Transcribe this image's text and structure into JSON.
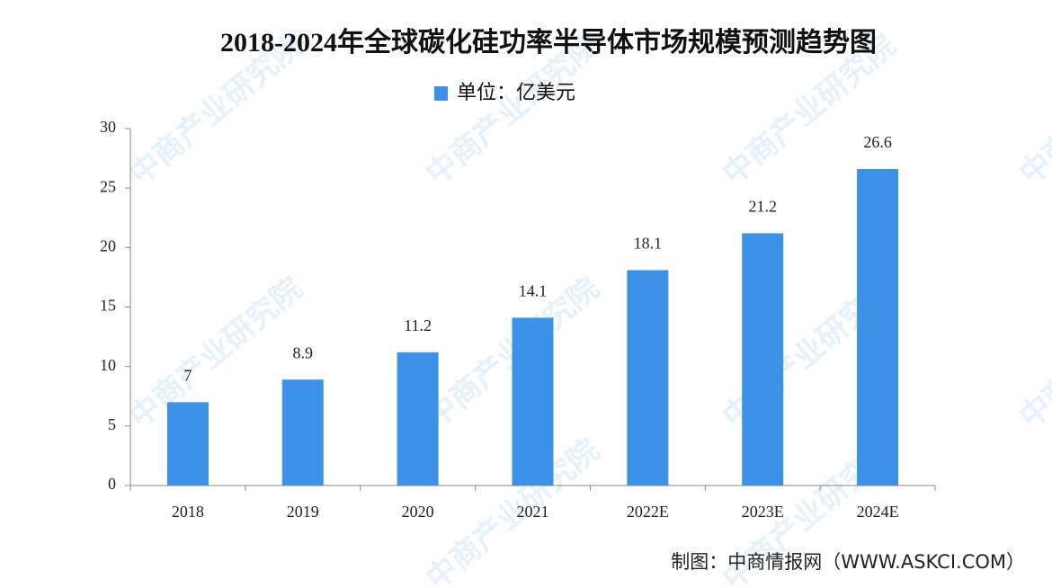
{
  "chart_data": {
    "type": "bar",
    "title": "2018-2024年全球碳化硅功率半导体市场规模预测趋势图",
    "legend": "单位：亿美元",
    "source": "制图：中商情报网（WWW.ASKCI.COM）",
    "watermark": "中商产业研究院",
    "categories": [
      "2018",
      "2019",
      "2020",
      "2021",
      "2022E",
      "2023E",
      "2024E"
    ],
    "values": [
      7,
      8.9,
      11.2,
      14.1,
      18.1,
      21.2,
      26.6
    ],
    "color": "#3d92e8",
    "ylim": [
      0,
      30
    ],
    "yticks": [
      0,
      5,
      10,
      15,
      20,
      25,
      30
    ]
  }
}
